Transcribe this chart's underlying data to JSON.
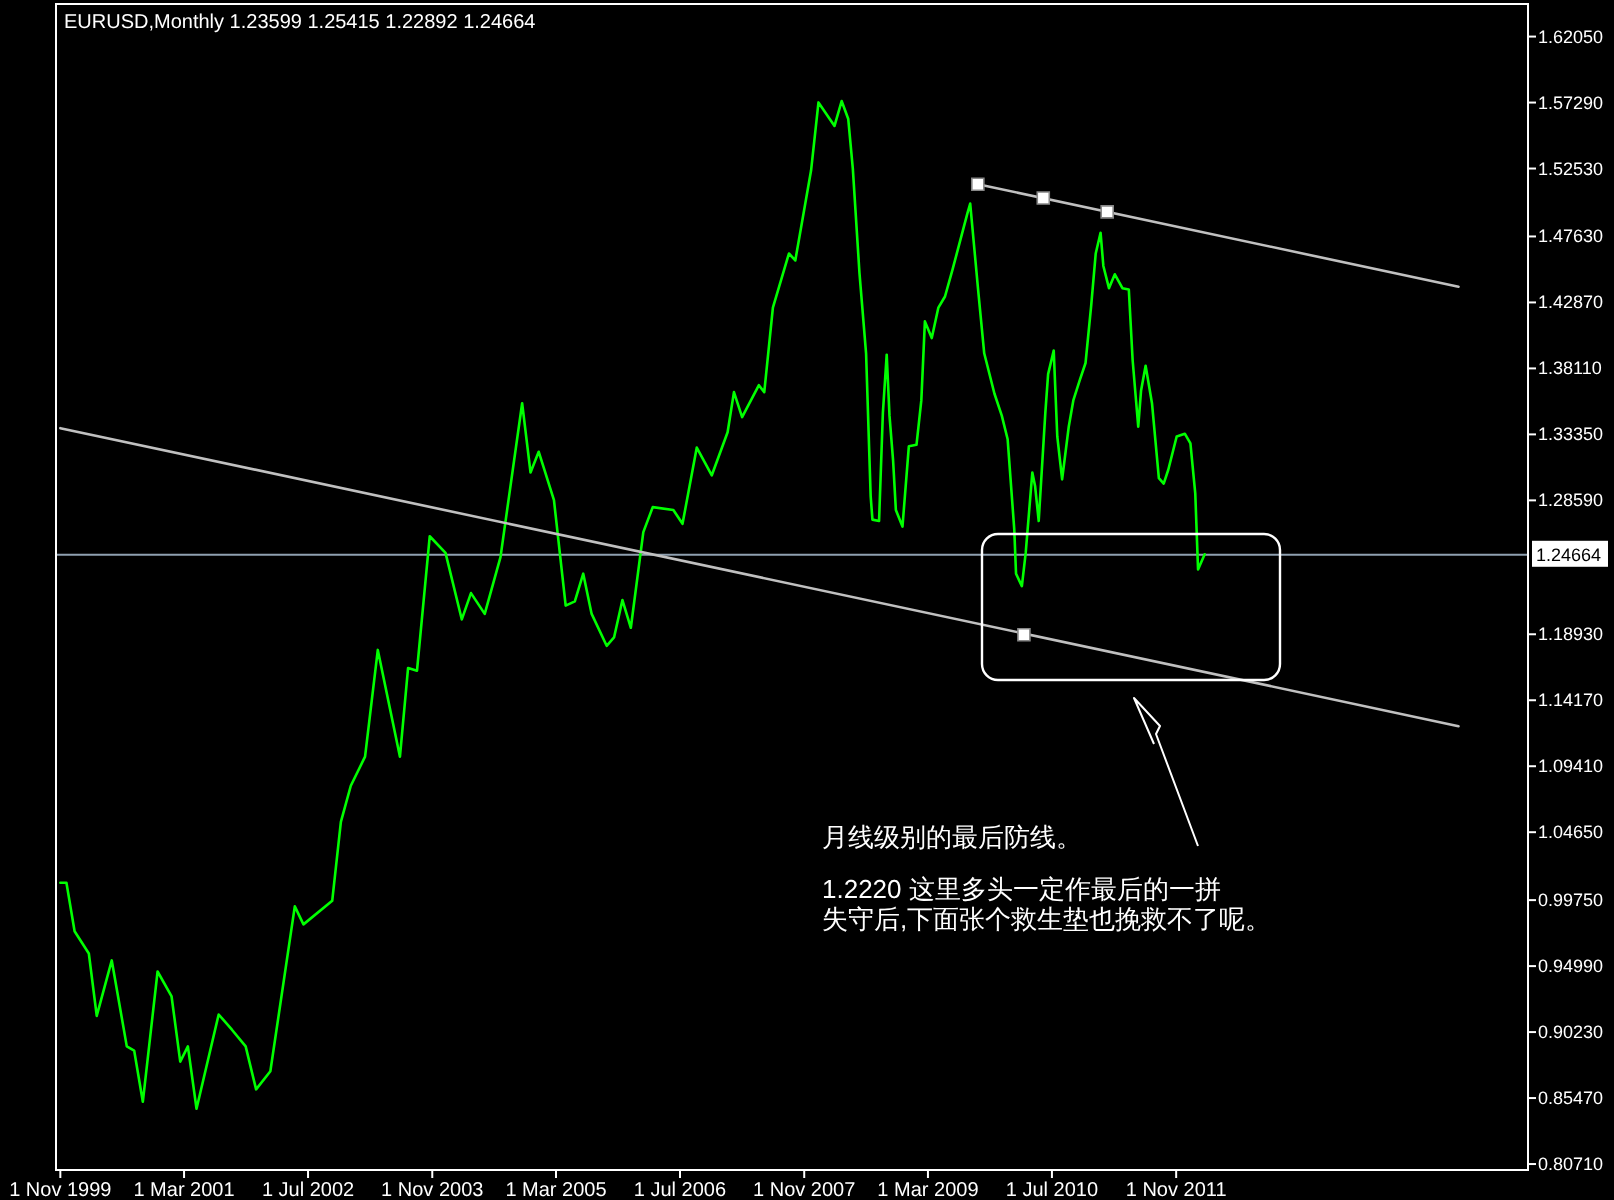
{
  "chart_data": {
    "type": "line",
    "title": "EURUSD,Monthly  1.23599 1.25415 1.22892 1.24664",
    "x": [
      "1999-11-01",
      "1999-11-25",
      "1999-12-27",
      "2000-02-21",
      "2000-03-23",
      "2000-05-21",
      "2000-07-19",
      "2000-08-17",
      "2000-09-20",
      "2000-11-17",
      "2001-01-11",
      "2001-02-14",
      "2001-03-16",
      "2001-04-19",
      "2001-07-15",
      "2001-09-05",
      "2001-10-29",
      "2001-12-09",
      "2002-02-03",
      "2002-05-10",
      "2002-06-13",
      "2002-10-04",
      "2002-11-07",
      "2002-12-16",
      "2003-02-10",
      "2003-04-01",
      "2003-06-27",
      "2003-07-29",
      "2003-09-02",
      "2003-10-22",
      "2003-12-23",
      "2004-02-25",
      "2004-04-01",
      "2004-05-25",
      "2004-07-26",
      "2004-10-19",
      "2004-11-21",
      "2004-12-23",
      "2005-02-21",
      "2005-04-08",
      "2005-05-14",
      "2005-06-16",
      "2005-07-19",
      "2005-09-16",
      "2005-10-15",
      "2005-11-17",
      "2005-12-20",
      "2006-02-07",
      "2006-03-16",
      "2006-06-05",
      "2006-07-11",
      "2006-09-05",
      "2006-11-03",
      "2007-01-04",
      "2007-01-29",
      "2007-03-02",
      "2007-05-07",
      "2007-05-28",
      "2007-07-01",
      "2007-09-02",
      "2007-09-27",
      "2007-11-28",
      "2007-12-27",
      "2008-02-28",
      "2008-03-27",
      "2008-04-22",
      "2008-05-10",
      "2008-06-05",
      "2008-07-01",
      "2008-07-19",
      "2008-07-26",
      "2008-08-21",
      "2008-09-05",
      "2008-09-20",
      "2008-10-01",
      "2008-10-15",
      "2008-10-26",
      "2008-11-21",
      "2008-12-16",
      "2009-01-15",
      "2009-02-03",
      "2009-02-17",
      "2009-03-16",
      "2009-04-11",
      "2009-05-07",
      "2009-06-05",
      "2009-07-01",
      "2009-08-03",
      "2009-08-14",
      "2009-09-13",
      "2009-10-08",
      "2009-11-17",
      "2009-12-16",
      "2010-01-08",
      "2010-02-03",
      "2010-02-10",
      "2010-03-05",
      "2010-03-20",
      "2010-04-15",
      "2010-04-26",
      "2010-05-10",
      "2010-06-05",
      "2010-06-16",
      "2010-07-08",
      "2010-07-22",
      "2010-08-10",
      "2010-09-05",
      "2010-09-23",
      "2010-10-19",
      "2010-11-10",
      "2010-12-02",
      "2010-12-20",
      "2011-01-08",
      "2011-01-19",
      "2011-02-10",
      "2011-03-05",
      "2011-04-04",
      "2011-04-29",
      "2011-05-14",
      "2011-06-05",
      "2011-06-16",
      "2011-07-04",
      "2011-07-29",
      "2011-08-25",
      "2011-09-13",
      "2011-10-01",
      "2011-11-03",
      "2011-12-05",
      "2011-12-27",
      "2012-01-15",
      "2012-01-26",
      "2012-02-21"
    ],
    "xlim": [
      "1999-10-15",
      "2015-08-14"
    ],
    "xticks": [
      {
        "value": "1999-11-01",
        "label": "1 Nov 1999"
      },
      {
        "value": "2001-03-01",
        "label": "1 Mar 2001"
      },
      {
        "value": "2002-07-01",
        "label": "1 Jul 2002"
      },
      {
        "value": "2003-11-01",
        "label": "1 Nov 2003"
      },
      {
        "value": "2005-03-01",
        "label": "1 Mar 2005"
      },
      {
        "value": "2006-07-01",
        "label": "1 Jul 2006"
      },
      {
        "value": "2007-11-01",
        "label": "1 Nov 2007"
      },
      {
        "value": "2009-03-01",
        "label": "1 Mar 2009"
      },
      {
        "value": "2010-07-01",
        "label": "1 Jul 2010"
      },
      {
        "value": "2011-11-01",
        "label": "1 Nov 2011"
      }
    ],
    "ylim": [
      0.8028,
      1.644
    ],
    "yticks": [
      {
        "value": 1.6205,
        "label": "1.62050"
      },
      {
        "value": 1.5729,
        "label": "1.57290"
      },
      {
        "value": 1.5253,
        "label": "1.52530"
      },
      {
        "value": 1.4763,
        "label": "1.47630"
      },
      {
        "value": 1.4287,
        "label": "1.42870"
      },
      {
        "value": 1.3811,
        "label": "1.38110"
      },
      {
        "value": 1.3335,
        "label": "1.33350"
      },
      {
        "value": 1.2859,
        "label": "1.28590"
      },
      {
        "value": 1.1893,
        "label": "1.18930"
      },
      {
        "value": 1.1417,
        "label": "1.14170"
      },
      {
        "value": 1.0941,
        "label": "1.09410"
      },
      {
        "value": 1.0465,
        "label": "1.04650"
      },
      {
        "value": 0.9975,
        "label": "0.99750"
      },
      {
        "value": 0.9499,
        "label": "0.94990"
      },
      {
        "value": 0.9023,
        "label": "0.90230"
      },
      {
        "value": 0.8547,
        "label": "0.85470"
      },
      {
        "value": 0.8071,
        "label": "0.80710"
      }
    ],
    "series": [
      {
        "color": "#00ff00",
        "values": [
          1.01,
          1.01,
          0.975,
          0.959,
          0.914,
          0.954,
          0.892,
          0.889,
          0.852,
          0.946,
          0.928,
          0.881,
          0.892,
          0.847,
          0.915,
          0.904,
          0.892,
          0.861,
          0.874,
          0.993,
          0.98,
          0.997,
          1.054,
          1.08,
          1.101,
          1.178,
          1.101,
          1.165,
          1.163,
          1.26,
          1.248,
          1.2,
          1.219,
          1.204,
          1.245,
          1.356,
          1.306,
          1.321,
          1.286,
          1.21,
          1.213,
          1.233,
          1.204,
          1.181,
          1.187,
          1.214,
          1.194,
          1.263,
          1.281,
          1.279,
          1.269,
          1.324,
          1.304,
          1.335,
          1.364,
          1.346,
          1.369,
          1.364,
          1.425,
          1.464,
          1.459,
          1.524,
          1.573,
          1.556,
          1.574,
          1.561,
          1.525,
          1.45,
          1.392,
          1.289,
          1.272,
          1.271,
          1.349,
          1.391,
          1.347,
          1.315,
          1.279,
          1.267,
          1.325,
          1.326,
          1.358,
          1.415,
          1.403,
          1.425,
          1.433,
          1.452,
          1.47,
          1.493,
          1.5,
          1.44,
          1.392,
          1.363,
          1.347,
          1.33,
          1.265,
          1.233,
          1.224,
          1.248,
          1.306,
          1.296,
          1.271,
          1.349,
          1.377,
          1.394,
          1.332,
          1.301,
          1.339,
          1.358,
          1.373,
          1.385,
          1.426,
          1.464,
          1.479,
          1.455,
          1.439,
          1.449,
          1.439,
          1.438,
          1.387,
          1.339,
          1.365,
          1.383,
          1.356,
          1.302,
          1.298,
          1.308,
          1.332,
          1.334,
          1.327,
          1.291,
          1.236,
          1.247
        ]
      },
      {
        "type": "line",
        "color": "#c0c0c0",
        "x": [
          "2009-09-13",
          "2014-11-14"
        ],
        "values": [
          1.514,
          1.44
        ]
      },
      {
        "type": "line",
        "color": "#c0c0c0",
        "x": [
          "1999-11-01",
          "2014-11-14"
        ],
        "values": [
          1.338,
          1.123
        ]
      },
      {
        "type": "scatter",
        "color": "#ffffff",
        "marker": "square",
        "x": [
          "2009-09-13",
          "2010-05-28",
          "2011-02-03",
          "2010-03-13"
        ],
        "values": [
          1.514,
          1.504,
          1.494,
          1.189
        ]
      }
    ],
    "ref_lines": [
      {
        "axis": "y",
        "value": 1.24664,
        "label": "1.24664",
        "color": "#8fa0b0"
      }
    ],
    "annotations": [
      "月线级别的最后防线。",
      "1.2220 这里多头一定作最后的一拼",
      "失守后,下面张个救生垫也挽救不了呢。"
    ],
    "grid": false,
    "marker": "none"
  }
}
